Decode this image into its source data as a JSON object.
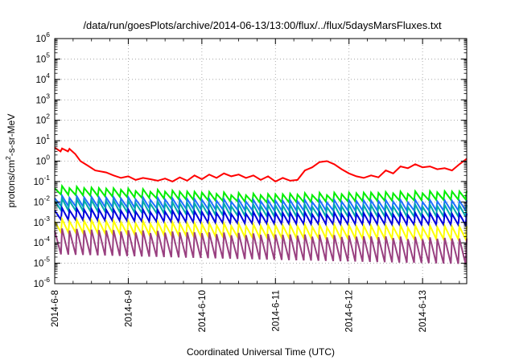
{
  "chart_data": {
    "type": "line",
    "title": "/data/run/goesPlots/archive/2014-06-13/13:00/flux/../flux/5daysMarsFluxes.txt",
    "xlabel": "Coordinated Universal Time (UTC)",
    "ylabel": "protons/cm2-s-sr-MeV",
    "ylabel_parts": {
      "base": "protons/cm",
      "sup": "2",
      "rest": "-s-sr-MeV"
    },
    "y_scale": "log",
    "ylim": [
      1e-06,
      1000000.0
    ],
    "y_ticks": [
      {
        "base": "10",
        "exp": "-6"
      },
      {
        "base": "10",
        "exp": "-5"
      },
      {
        "base": "10",
        "exp": "-4"
      },
      {
        "base": "10",
        "exp": "-3"
      },
      {
        "base": "10",
        "exp": "-2"
      },
      {
        "base": "10",
        "exp": "-1"
      },
      {
        "base": "10",
        "exp": "0"
      },
      {
        "base": "10",
        "exp": "1"
      },
      {
        "base": "10",
        "exp": "2"
      },
      {
        "base": "10",
        "exp": "3"
      },
      {
        "base": "10",
        "exp": "4"
      },
      {
        "base": "10",
        "exp": "5"
      },
      {
        "base": "10",
        "exp": "6"
      }
    ],
    "x_ticks": [
      "2014-6-8",
      "2014-6-9",
      "2014-6-10",
      "2014-6-11",
      "2014-6-12",
      "2014-6-13"
    ],
    "xlim_days": [
      0,
      5.6
    ],
    "grid": true,
    "legend": false,
    "series_colors": [
      "#ff0000",
      "#00ee00",
      "#00aaaa",
      "#1e6fff",
      "#0000dd",
      "#ffff00",
      "#994080"
    ],
    "series": [
      {
        "color": "#ff0000",
        "x": [
          0,
          0.08,
          0.1,
          0.18,
          0.2,
          0.28,
          0.35,
          0.45,
          0.55,
          0.7,
          0.8,
          0.9,
          1.0,
          1.1,
          1.2,
          1.3,
          1.4,
          1.5,
          1.6,
          1.7,
          1.8,
          1.9,
          2.0,
          2.1,
          2.2,
          2.3,
          2.4,
          2.5,
          2.6,
          2.7,
          2.8,
          2.9,
          3.0,
          3.1,
          3.2,
          3.3,
          3.4,
          3.5,
          3.6,
          3.7,
          3.8,
          3.9,
          4.0,
          4.1,
          4.2,
          4.3,
          4.4,
          4.5,
          4.6,
          4.7,
          4.8,
          4.9,
          5.0,
          5.1,
          5.2,
          5.3,
          5.4,
          5.5,
          5.6
        ],
        "y": [
          4.5,
          3.0,
          4.2,
          3.0,
          4.0,
          2.2,
          1.0,
          0.6,
          0.35,
          0.28,
          0.2,
          0.15,
          0.18,
          0.12,
          0.15,
          0.13,
          0.11,
          0.14,
          0.1,
          0.16,
          0.11,
          0.2,
          0.13,
          0.22,
          0.15,
          0.25,
          0.18,
          0.22,
          0.15,
          0.2,
          0.12,
          0.18,
          0.1,
          0.15,
          0.11,
          0.12,
          0.35,
          0.5,
          0.9,
          1.0,
          0.7,
          0.4,
          0.25,
          0.18,
          0.15,
          0.2,
          0.16,
          0.35,
          0.25,
          0.55,
          0.45,
          0.7,
          0.5,
          0.55,
          0.4,
          0.45,
          0.35,
          0.7,
          1.3
        ]
      },
      {
        "color": "#00ee00",
        "x": [
          0,
          5.6
        ],
        "y": [
          0.05,
          0.035
        ],
        "osc": {
          "period_days": 0.1,
          "low_factor": 0.42,
          "base_start": 0.055,
          "base_end": 0.032,
          "base_mid": 0.022
        }
      },
      {
        "color": "#00aaaa",
        "x": [
          0,
          5.6
        ],
        "y": [
          0.012,
          0.006
        ],
        "osc": {
          "period_days": 0.1,
          "low_factor": 0.3,
          "base_start": 0.013,
          "base_end": 0.0065,
          "base_mid": 0.0065
        }
      },
      {
        "color": "#1e6fff",
        "x": [
          0,
          5.6
        ],
        "y": [
          0.018,
          0.011
        ],
        "osc": {
          "period_days": 0.1,
          "low_factor": 0.35,
          "base_start": 0.018,
          "base_end": 0.011,
          "base_mid": 0.011
        }
      },
      {
        "color": "#0000dd",
        "x": [
          0,
          5.6
        ],
        "y": [
          0.0045,
          0.0025
        ],
        "osc": {
          "period_days": 0.1,
          "low_factor": 0.3,
          "base_start": 0.0045,
          "base_end": 0.0025,
          "base_mid": 0.0028
        }
      },
      {
        "color": "#ffff00",
        "x": [
          0,
          5.6
        ],
        "y": [
          0.0012,
          0.0006
        ],
        "osc": {
          "period_days": 0.1,
          "low_factor": 0.25,
          "base_start": 0.0013,
          "base_end": 0.0006,
          "base_mid": 0.0007
        }
      },
      {
        "color": "#994080",
        "x": [
          0,
          5.6
        ],
        "y": [
          0.0004,
          0.00015
        ],
        "osc": {
          "period_days": 0.1,
          "low_factor": 0.06,
          "base_start": 0.00045,
          "base_end": 0.00015,
          "base_mid": 0.00025
        }
      }
    ]
  }
}
